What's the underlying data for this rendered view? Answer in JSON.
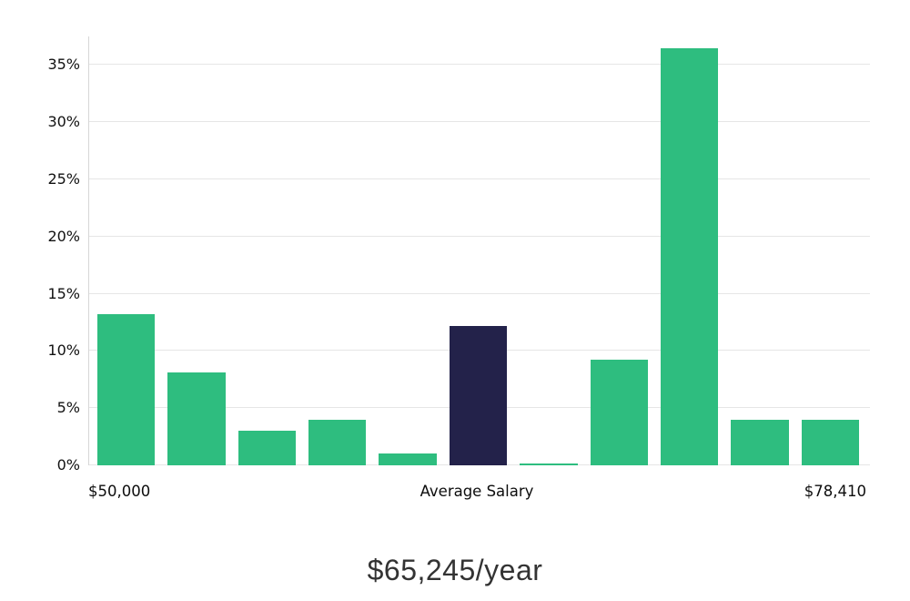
{
  "chart_data": {
    "type": "bar",
    "title": "",
    "values": [
      13.2,
      8.1,
      3.0,
      4.0,
      1.0,
      12.2,
      0.15,
      9.2,
      36.5,
      4.0,
      4.0
    ],
    "highlight_index": 5,
    "colors": {
      "bar": "#2EBD7F",
      "highlight_bar": "#23224A",
      "grid": "#E6E6E6",
      "axis": "#D6D6D6",
      "text": "#111111"
    },
    "y_ticks": [
      0,
      5,
      10,
      15,
      20,
      25,
      30,
      35
    ],
    "y_tick_suffix": "%",
    "ylim": [
      0,
      37.5
    ],
    "grid": true,
    "legend": "none",
    "xlabel": "",
    "ylabel": "",
    "x_axis_labels": {
      "left": "$50,000",
      "center": "Average Salary",
      "right": "$78,410"
    },
    "caption": "$65,245/year"
  }
}
